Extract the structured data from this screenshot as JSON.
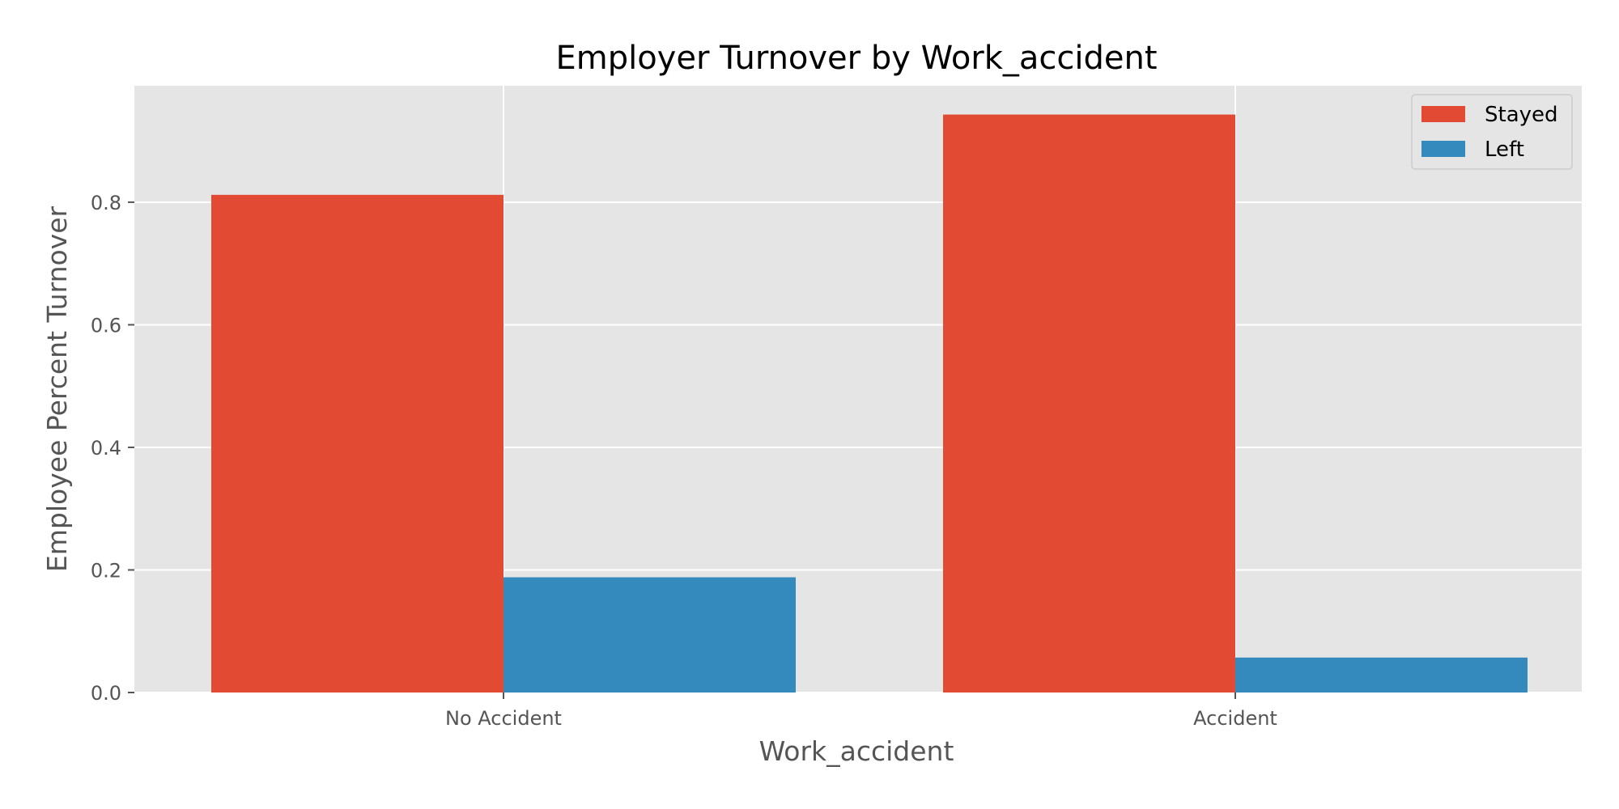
{
  "chart_data": {
    "type": "bar",
    "title": "Employer Turnover by Work_accident",
    "xlabel": "Work_accident",
    "ylabel": "Employee Percent Turnover",
    "categories": [
      "No Accident",
      "Accident"
    ],
    "series": [
      {
        "name": "Stayed",
        "values": [
          0.812,
          0.943
        ],
        "color": "#E24A33"
      },
      {
        "name": "Left",
        "values": [
          0.188,
          0.057
        ],
        "color": "#348ABD"
      }
    ],
    "ylim": [
      0,
      0.99
    ],
    "yticks": [
      "0.0",
      "0.2",
      "0.4",
      "0.6",
      "0.8"
    ],
    "ytick_values": [
      0.0,
      0.2,
      0.4,
      0.6,
      0.8
    ],
    "grid": true,
    "legend_position": "top-right",
    "colors": {
      "plot_background": "#E5E5E5",
      "grid": "#FFFFFF"
    }
  }
}
